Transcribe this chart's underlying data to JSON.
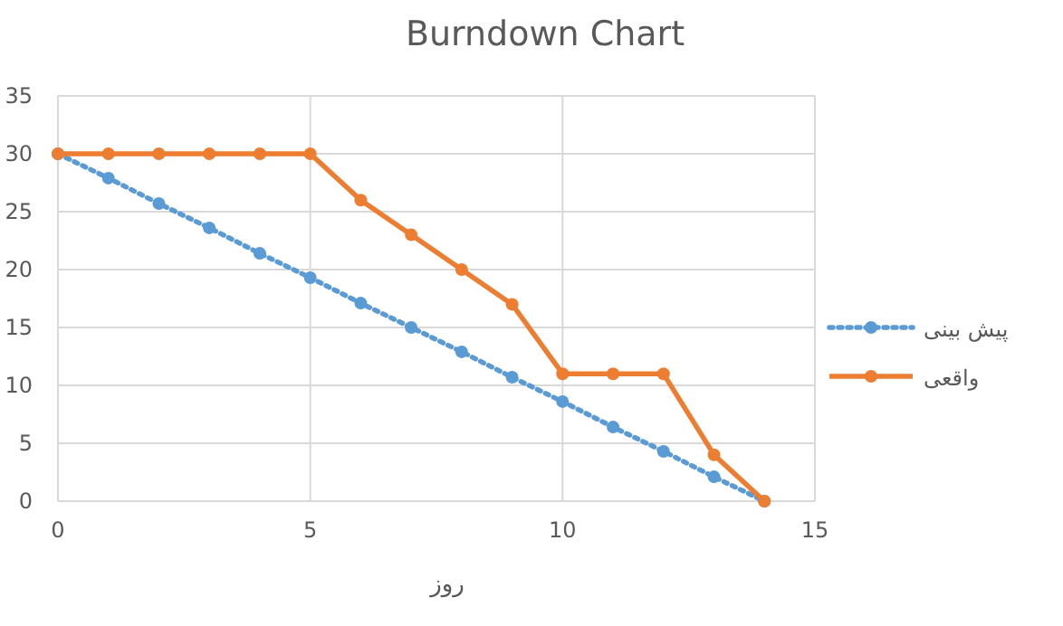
{
  "chart_data": {
    "type": "line",
    "title": "Burndown Chart",
    "xlabel": "روز",
    "x": [
      0,
      1,
      2,
      3,
      4,
      5,
      6,
      7,
      8,
      9,
      10,
      11,
      12,
      13,
      14
    ],
    "series": [
      {
        "name": "پیش بینی",
        "color": "#5b9bd5",
        "line_style": "dotted",
        "values": [
          30,
          27.9,
          25.7,
          23.6,
          21.4,
          19.3,
          17.1,
          15,
          12.9,
          10.7,
          8.6,
          6.4,
          4.3,
          2.1,
          0
        ]
      },
      {
        "name": "واقعی",
        "color": "#ed7d31",
        "line_style": "solid",
        "values": [
          30,
          30,
          30,
          30,
          30,
          30,
          26,
          23,
          20,
          17,
          11,
          11,
          11,
          4,
          0
        ]
      }
    ],
    "xlim": [
      0,
      15
    ],
    "xticks": [
      0,
      5,
      10,
      15
    ],
    "ylim": [
      0,
      35
    ],
    "yticks": [
      0,
      5,
      10,
      15,
      20,
      25,
      30,
      35
    ],
    "grid": true,
    "legend": "right",
    "marker": "circle"
  }
}
